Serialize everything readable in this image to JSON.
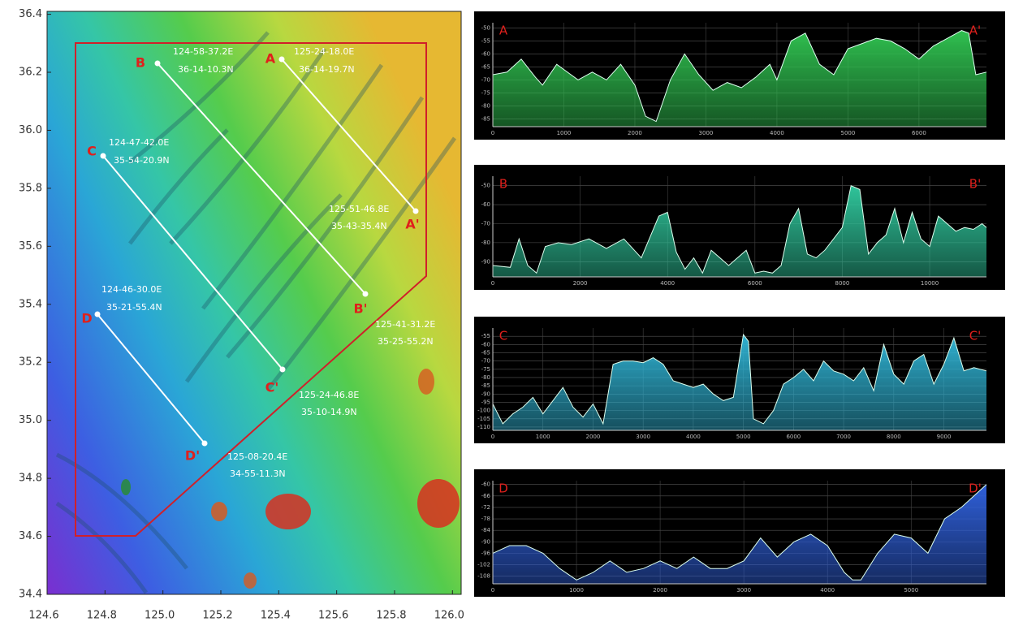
{
  "map": {
    "xlim": [
      124.6,
      126.03
    ],
    "ylim": [
      34.4,
      36.41
    ],
    "xticks": [
      124.6,
      124.8,
      {
        "value": 125,
        "label": "125.0"
      },
      125.2,
      125.4,
      125.6,
      125.8,
      {
        "value": 126,
        "label": "126.0"
      }
    ],
    "yticks": [
      34.4,
      34.6,
      34.8,
      {
        "value": 35,
        "label": "35.0"
      },
      35.2,
      35.4,
      35.6,
      35.8,
      {
        "value": 36,
        "label": "36.0"
      },
      36.2,
      36.4
    ],
    "profile_lines": [
      {
        "start_label": "A",
        "end_label": "A'",
        "start_lon": "125-24-18.0E",
        "start_lat": "36-14-19.7N",
        "end_lon": "125-51-46.8E",
        "end_lat": "35-43-35.4N"
      },
      {
        "start_label": "B",
        "end_label": "B'",
        "start_lon": "124-58-37.2E",
        "start_lat": "36-14-10.3N",
        "end_lon": "125-41-31.2E",
        "end_lat": "35-25-55.2N"
      },
      {
        "start_label": "C",
        "end_label": "C'",
        "start_lon": "124-47-42.0E",
        "start_lat": "35-54-20.9N",
        "end_lon": "125-24-46.8E",
        "end_lat": "35-10-14.9N"
      },
      {
        "start_label": "D",
        "end_label": "D'",
        "start_lon": "124-46-30.0E",
        "start_lat": "35-21-55.4N",
        "end_lon": "125-08-20.4E",
        "end_lat": "34-55-11.3N"
      }
    ]
  },
  "chart_data": [
    {
      "type": "area",
      "start_label": "A",
      "end_label": "A'",
      "color": "#2fbf4f",
      "xlim": [
        0,
        6950
      ],
      "ylim": [
        -88,
        -48
      ],
      "xticks": [
        0,
        1000,
        2000,
        3000,
        4000,
        5000,
        6000
      ],
      "yticks": [
        -50,
        -55,
        -60,
        -65,
        -70,
        -75,
        -80,
        -85
      ],
      "x": [
        0,
        200,
        400,
        600,
        700,
        900,
        1000,
        1200,
        1400,
        1600,
        1800,
        2000,
        2150,
        2300,
        2500,
        2700,
        2900,
        3100,
        3300,
        3500,
        3700,
        3900,
        4000,
        4200,
        4400,
        4600,
        4800,
        5000,
        5200,
        5400,
        5600,
        5800,
        6000,
        6200,
        6400,
        6600,
        6700,
        6800,
        6950
      ],
      "values": [
        -68,
        -67,
        -62,
        -69,
        -72,
        -64,
        -66,
        -70,
        -67,
        -70,
        -64,
        -72,
        -84,
        -86,
        -70,
        -60,
        -68,
        -74,
        -71,
        -73,
        -69,
        -64,
        -70,
        -55,
        -52,
        -64,
        -68,
        -58,
        -56,
        -54,
        -55,
        -58,
        -62,
        -57,
        -54,
        -51,
        -52,
        -68,
        -67
      ]
    },
    {
      "type": "area",
      "start_label": "B",
      "end_label": "B'",
      "color": "#2fc49a",
      "xlim": [
        0,
        11300
      ],
      "ylim": [
        -98,
        -45
      ],
      "xticks": [
        0,
        2000,
        4000,
        6000,
        8000,
        10000
      ],
      "yticks": [
        -50,
        -60,
        -70,
        -80,
        -90
      ],
      "x": [
        0,
        400,
        600,
        800,
        1000,
        1200,
        1500,
        1800,
        2200,
        2600,
        3000,
        3400,
        3800,
        4000,
        4200,
        4400,
        4600,
        4800,
        5000,
        5400,
        5800,
        6000,
        6200,
        6400,
        6600,
        6800,
        7000,
        7200,
        7400,
        7600,
        7800,
        8000,
        8200,
        8400,
        8600,
        8800,
        9000,
        9200,
        9400,
        9600,
        9800,
        10000,
        10200,
        10400,
        10600,
        10800,
        11000,
        11200,
        11300
      ],
      "values": [
        -92,
        -93,
        -78,
        -92,
        -96,
        -82,
        -80,
        -81,
        -78,
        -83,
        -78,
        -88,
        -66,
        -64,
        -85,
        -94,
        -88,
        -96,
        -84,
        -92,
        -84,
        -96,
        -95,
        -96,
        -92,
        -70,
        -62,
        -86,
        -88,
        -84,
        -78,
        -72,
        -50,
        -52,
        -86,
        -80,
        -76,
        -62,
        -80,
        -64,
        -78,
        -82,
        -66,
        -70,
        -74,
        -72,
        -73,
        -70,
        -72
      ]
    },
    {
      "type": "area",
      "start_label": "C",
      "end_label": "C'",
      "color": "#2fb0d0",
      "xlim": [
        0,
        9850
      ],
      "ylim": [
        -112,
        -50
      ],
      "xticks": [
        0,
        1000,
        2000,
        3000,
        4000,
        5000,
        6000,
        7000,
        8000,
        9000
      ],
      "yticks": [
        -55,
        -60,
        -65,
        -70,
        -75,
        -80,
        -85,
        -90,
        -95,
        -100,
        -105,
        -110
      ],
      "x": [
        0,
        200,
        400,
        600,
        800,
        1000,
        1200,
        1400,
        1600,
        1800,
        2000,
        2200,
        2400,
        2600,
        2800,
        3000,
        3200,
        3400,
        3600,
        3800,
        4000,
        4200,
        4400,
        4600,
        4800,
        5000,
        5100,
        5200,
        5400,
        5600,
        5800,
        6000,
        6200,
        6400,
        6600,
        6800,
        7000,
        7200,
        7400,
        7600,
        7800,
        8000,
        8200,
        8400,
        8600,
        8800,
        9000,
        9200,
        9400,
        9600,
        9850
      ],
      "values": [
        -96,
        -108,
        -102,
        -98,
        -92,
        -102,
        -94,
        -86,
        -98,
        -104,
        -96,
        -108,
        -72,
        -70,
        -70,
        -71,
        -68,
        -72,
        -82,
        -84,
        -86,
        -84,
        -90,
        -94,
        -92,
        -54,
        -58,
        -105,
        -108,
        -100,
        -84,
        -80,
        -75,
        -82,
        -70,
        -76,
        -78,
        -82,
        -74,
        -88,
        -60,
        -78,
        -84,
        -70,
        -66,
        -84,
        -72,
        -56,
        -76,
        -74,
        -76
      ]
    },
    {
      "type": "area",
      "start_label": "D",
      "end_label": "D'",
      "color": "#2f5fd8",
      "xlim": [
        0,
        5900
      ],
      "ylim": [
        -112,
        -58
      ],
      "xticks": [
        0,
        1000,
        2000,
        3000,
        4000,
        5000
      ],
      "yticks": [
        -60,
        -66,
        -72,
        -78,
        -84,
        -90,
        -96,
        -102,
        -108
      ],
      "x": [
        0,
        200,
        400,
        600,
        800,
        1000,
        1200,
        1400,
        1600,
        1800,
        2000,
        2200,
        2400,
        2600,
        2800,
        3000,
        3200,
        3400,
        3600,
        3800,
        4000,
        4200,
        4300,
        4400,
        4600,
        4800,
        5000,
        5200,
        5400,
        5600,
        5800,
        5900
      ],
      "values": [
        -96,
        -92,
        -92,
        -96,
        -104,
        -110,
        -106,
        -100,
        -106,
        -104,
        -100,
        -104,
        -98,
        -104,
        -104,
        -100,
        -88,
        -98,
        -90,
        -86,
        -92,
        -106,
        -110,
        -110,
        -96,
        -86,
        -88,
        -96,
        -78,
        -72,
        -64,
        -60
      ]
    }
  ]
}
